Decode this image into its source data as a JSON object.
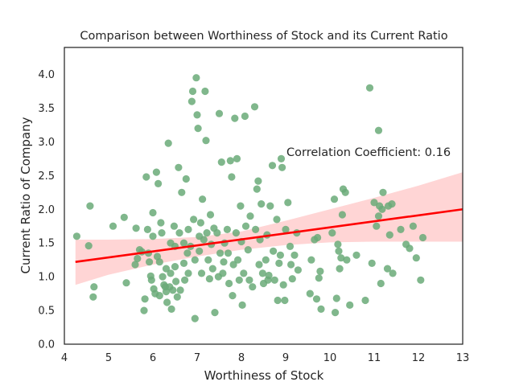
{
  "chart_data": {
    "type": "scatter",
    "title": "Comparison between Worthiness of Stock and its Current Ratio",
    "xlabel": "Worthiness of Stock",
    "ylabel": "Current Ratio of Company",
    "xlim": [
      4,
      13
    ],
    "ylim": [
      0,
      4.4
    ],
    "xticks": [
      "4",
      "5",
      "6",
      "7",
      "8",
      "9",
      "10",
      "11",
      "12",
      "13"
    ],
    "yticks": [
      "0.0",
      "0.5",
      "1.0",
      "1.5",
      "2.0",
      "2.5",
      "3.0",
      "3.5",
      "4.0"
    ],
    "grid": false,
    "annotation": {
      "text": "Correlation Coefficient: 0.16",
      "x": 9.0,
      "y": 2.85
    },
    "colors": {
      "points": "#6aaa78",
      "regression": "#ff0000",
      "band": "#ffb3b3",
      "frame": "#262626"
    },
    "regression": {
      "x": [
        4.25,
        13
      ],
      "y": [
        1.22,
        2.0
      ]
    },
    "confidence_band": {
      "x": [
        4.25,
        5,
        6,
        7,
        8,
        9,
        10,
        11,
        12,
        13
      ],
      "lower": [
        0.88,
        1.03,
        1.18,
        1.3,
        1.4,
        1.47,
        1.51,
        1.52,
        1.52,
        1.52
      ],
      "upper": [
        1.55,
        1.55,
        1.56,
        1.59,
        1.67,
        1.83,
        2.0,
        2.17,
        2.35,
        2.55
      ]
    },
    "points": [
      [
        4.28,
        1.6
      ],
      [
        4.55,
        1.46
      ],
      [
        4.58,
        2.05
      ],
      [
        4.65,
        0.7
      ],
      [
        4.67,
        0.85
      ],
      [
        5.1,
        1.75
      ],
      [
        5.35,
        1.88
      ],
      [
        5.4,
        0.91
      ],
      [
        5.6,
        1.18
      ],
      [
        5.62,
        1.72
      ],
      [
        5.65,
        1.27
      ],
      [
        5.7,
        1.4
      ],
      [
        5.75,
        1.37
      ],
      [
        5.8,
        0.5
      ],
      [
        5.82,
        0.67
      ],
      [
        5.85,
        2.48
      ],
      [
        5.88,
        1.7
      ],
      [
        5.9,
        1.35
      ],
      [
        5.92,
        1.22
      ],
      [
        5.95,
        1.01
      ],
      [
        5.97,
        0.95
      ],
      [
        6.0,
        1.95
      ],
      [
        6.0,
        1.6
      ],
      [
        6.02,
        0.82
      ],
      [
        6.05,
        0.75
      ],
      [
        6.08,
        2.55
      ],
      [
        6.1,
        1.3
      ],
      [
        6.12,
        2.38
      ],
      [
        6.15,
        1.22
      ],
      [
        6.15,
        0.72
      ],
      [
        6.18,
        1.8
      ],
      [
        6.2,
        1.65
      ],
      [
        6.22,
        1.0
      ],
      [
        6.25,
        0.88
      ],
      [
        6.28,
        0.85
      ],
      [
        6.3,
        1.12
      ],
      [
        6.3,
        0.78
      ],
      [
        6.32,
        0.62
      ],
      [
        6.35,
        2.98
      ],
      [
        6.38,
        0.85
      ],
      [
        6.4,
        1.5
      ],
      [
        6.4,
        1.05
      ],
      [
        6.42,
        0.52
      ],
      [
        6.45,
        0.8
      ],
      [
        6.48,
        1.75
      ],
      [
        6.5,
        1.45
      ],
      [
        6.5,
        1.15
      ],
      [
        6.52,
        0.93
      ],
      [
        6.55,
        0.7
      ],
      [
        6.58,
        2.62
      ],
      [
        6.6,
        1.65
      ],
      [
        6.62,
        0.8
      ],
      [
        6.65,
        2.25
      ],
      [
        6.7,
        1.5
      ],
      [
        6.7,
        1.2
      ],
      [
        6.72,
        0.95
      ],
      [
        6.75,
        2.45
      ],
      [
        6.78,
        1.35
      ],
      [
        6.8,
        1.7
      ],
      [
        6.8,
        1.05
      ],
      [
        6.85,
        1.45
      ],
      [
        6.88,
        3.6
      ],
      [
        6.9,
        3.75
      ],
      [
        6.92,
        1.85
      ],
      [
        6.95,
        0.38
      ],
      [
        6.95,
        1.25
      ],
      [
        6.98,
        3.95
      ],
      [
        7.0,
        3.4
      ],
      [
        7.02,
        3.2
      ],
      [
        7.05,
        1.6
      ],
      [
        7.05,
        1.38
      ],
      [
        7.08,
        1.8
      ],
      [
        7.1,
        1.05
      ],
      [
        7.12,
        2.15
      ],
      [
        7.15,
        1.55
      ],
      [
        7.18,
        3.75
      ],
      [
        7.2,
        3.02
      ],
      [
        7.22,
        1.65
      ],
      [
        7.25,
        1.25
      ],
      [
        7.28,
        0.97
      ],
      [
        7.3,
        1.92
      ],
      [
        7.32,
        1.48
      ],
      [
        7.35,
        1.12
      ],
      [
        7.38,
        1.72
      ],
      [
        7.4,
        0.47
      ],
      [
        7.45,
        1.65
      ],
      [
        7.48,
        1.0
      ],
      [
        7.5,
        3.42
      ],
      [
        7.52,
        1.35
      ],
      [
        7.55,
        2.7
      ],
      [
        7.58,
        1.05
      ],
      [
        7.6,
        1.22
      ],
      [
        7.62,
        1.5
      ],
      [
        7.68,
        1.7
      ],
      [
        7.7,
        1.35
      ],
      [
        7.72,
        0.9
      ],
      [
        7.75,
        2.72
      ],
      [
        7.78,
        2.48
      ],
      [
        7.8,
        0.72
      ],
      [
        7.82,
        1.18
      ],
      [
        7.85,
        3.35
      ],
      [
        7.88,
        1.65
      ],
      [
        7.9,
        2.75
      ],
      [
        7.92,
        1.25
      ],
      [
        7.95,
        0.95
      ],
      [
        7.98,
        2.05
      ],
      [
        8.0,
        1.52
      ],
      [
        8.02,
        0.58
      ],
      [
        8.05,
        1.05
      ],
      [
        8.08,
        3.38
      ],
      [
        8.1,
        1.75
      ],
      [
        8.15,
        1.4
      ],
      [
        8.18,
        0.95
      ],
      [
        8.2,
        1.9
      ],
      [
        8.25,
        0.85
      ],
      [
        8.3,
        3.52
      ],
      [
        8.32,
        1.7
      ],
      [
        8.35,
        2.3
      ],
      [
        8.38,
        2.42
      ],
      [
        8.4,
        1.18
      ],
      [
        8.42,
        1.55
      ],
      [
        8.45,
        2.08
      ],
      [
        8.48,
        1.05
      ],
      [
        8.5,
        0.9
      ],
      [
        8.55,
        1.25
      ],
      [
        8.58,
        1.62
      ],
      [
        8.6,
        0.95
      ],
      [
        8.62,
        1.02
      ],
      [
        8.65,
        2.05
      ],
      [
        8.7,
        2.65
      ],
      [
        8.72,
        1.38
      ],
      [
        8.75,
        0.95
      ],
      [
        8.8,
        1.85
      ],
      [
        8.82,
        0.65
      ],
      [
        8.85,
        1.2
      ],
      [
        8.88,
        1.32
      ],
      [
        8.9,
        2.75
      ],
      [
        8.92,
        2.62
      ],
      [
        8.95,
        0.88
      ],
      [
        8.98,
        0.65
      ],
      [
        9.0,
        1.7
      ],
      [
        9.05,
        2.1
      ],
      [
        9.1,
        1.45
      ],
      [
        9.12,
        1.18
      ],
      [
        9.15,
        0.97
      ],
      [
        9.2,
        1.32
      ],
      [
        9.25,
        1.65
      ],
      [
        9.28,
        1.1
      ],
      [
        9.55,
        0.75
      ],
      [
        9.58,
        1.25
      ],
      [
        9.65,
        1.55
      ],
      [
        9.7,
        0.67
      ],
      [
        9.72,
        1.58
      ],
      [
        9.75,
        0.98
      ],
      [
        9.78,
        1.08
      ],
      [
        9.8,
        0.52
      ],
      [
        10.05,
        1.65
      ],
      [
        10.1,
        2.15
      ],
      [
        10.12,
        0.47
      ],
      [
        10.15,
        0.68
      ],
      [
        10.18,
        1.48
      ],
      [
        10.2,
        1.38
      ],
      [
        10.22,
        1.12
      ],
      [
        10.25,
        1.28
      ],
      [
        10.28,
        1.92
      ],
      [
        10.3,
        2.3
      ],
      [
        10.35,
        2.25
      ],
      [
        10.38,
        1.25
      ],
      [
        10.45,
        0.58
      ],
      [
        10.6,
        1.32
      ],
      [
        10.8,
        0.65
      ],
      [
        10.9,
        3.8
      ],
      [
        10.95,
        1.2
      ],
      [
        11.0,
        2.1
      ],
      [
        11.05,
        1.75
      ],
      [
        11.1,
        1.9
      ],
      [
        11.12,
        2.05
      ],
      [
        11.15,
        0.9
      ],
      [
        11.18,
        2.0
      ],
      [
        11.2,
        2.25
      ],
      [
        11.1,
        3.17
      ],
      [
        11.3,
        1.12
      ],
      [
        11.32,
        2.05
      ],
      [
        11.35,
        1.62
      ],
      [
        11.4,
        2.08
      ],
      [
        11.42,
        1.05
      ],
      [
        11.6,
        1.7
      ],
      [
        11.72,
        1.48
      ],
      [
        11.8,
        1.42
      ],
      [
        11.88,
        1.75
      ],
      [
        11.95,
        1.28
      ],
      [
        12.05,
        0.95
      ],
      [
        12.1,
        1.58
      ]
    ]
  }
}
